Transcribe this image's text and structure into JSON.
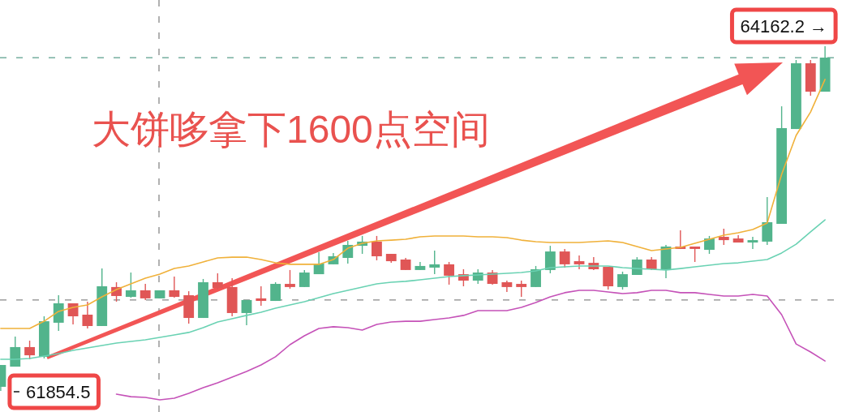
{
  "chart_data": {
    "type": "candlestick",
    "categories": [
      null,
      null,
      null,
      null,
      null,
      null,
      null,
      null,
      null,
      null,
      null,
      null,
      null,
      null,
      null,
      null,
      null,
      null,
      null,
      null,
      null,
      null,
      null,
      null,
      null,
      null,
      null,
      null,
      null,
      null,
      null,
      null,
      null,
      null,
      null,
      null,
      null,
      null,
      null,
      null,
      null,
      null,
      null,
      null,
      null,
      null,
      null,
      null,
      null,
      null,
      null,
      null,
      null,
      null,
      null,
      null,
      null,
      null
    ],
    "ohlc": [
      [
        61882,
        62028,
        61854.5,
        62028
      ],
      [
        62017,
        62218,
        62017,
        62148
      ],
      [
        62148,
        62191,
        62066,
        62093
      ],
      [
        62083,
        62354,
        62072,
        62321
      ],
      [
        62311,
        62495,
        62256,
        62441
      ],
      [
        62441,
        62441,
        62300,
        62354
      ],
      [
        62365,
        62452,
        62273,
        62289
      ],
      [
        62289,
        62674,
        62289,
        62555
      ],
      [
        62550,
        62582,
        62452,
        62490
      ],
      [
        62484,
        62647,
        62479,
        62528
      ],
      [
        62528,
        62571,
        62463,
        62474
      ],
      [
        62474,
        62528,
        62474,
        62528
      ],
      [
        62528,
        62620,
        62479,
        62484
      ],
      [
        62495,
        62522,
        62305,
        62343
      ],
      [
        62343,
        62604,
        62343,
        62582
      ],
      [
        62582,
        62642,
        62533,
        62544
      ],
      [
        62550,
        62609,
        62354,
        62376
      ],
      [
        62376,
        62463,
        62294,
        62463
      ],
      [
        62474,
        62555,
        62425,
        62457
      ],
      [
        62457,
        62582,
        62457,
        62571
      ],
      [
        62571,
        62664,
        62539,
        62550
      ],
      [
        62550,
        62664,
        62550,
        62647
      ],
      [
        62636,
        62783,
        62636,
        62707
      ],
      [
        62702,
        62778,
        62702,
        62756
      ],
      [
        62745,
        62859,
        62707,
        62832
      ],
      [
        62826,
        62892,
        62772,
        62854
      ],
      [
        62854,
        62892,
        62729,
        62756
      ],
      [
        62772,
        62772,
        62712,
        62723
      ],
      [
        62734,
        62745,
        62664,
        62664
      ],
      [
        62664,
        62718,
        62664,
        62691
      ],
      [
        62680,
        62794,
        62636,
        62702
      ],
      [
        62702,
        62718,
        62566,
        62626
      ],
      [
        62636,
        62669,
        62555,
        62593
      ],
      [
        62593,
        62669,
        62571,
        62647
      ],
      [
        62647,
        62664,
        62566,
        62571
      ],
      [
        62582,
        62593,
        62517,
        62550
      ],
      [
        62571,
        62593,
        62484,
        62550
      ],
      [
        62550,
        62691,
        62550,
        62669
      ],
      [
        62664,
        62826,
        62642,
        62788
      ],
      [
        62788,
        62805,
        62680,
        62702
      ],
      [
        62723,
        62761,
        62669,
        62702
      ],
      [
        62712,
        62750,
        62664,
        62669
      ],
      [
        62685,
        62685,
        62533,
        62555
      ],
      [
        62550,
        62653,
        62533,
        62636
      ],
      [
        62631,
        62750,
        62631,
        62734
      ],
      [
        62734,
        62750,
        62664,
        62669
      ],
      [
        62669,
        62832,
        62609,
        62821
      ],
      [
        62821,
        62930,
        62805,
        62805
      ],
      [
        62821,
        62821,
        62718,
        62805
      ],
      [
        62799,
        62892,
        62772,
        62875
      ],
      [
        62886,
        62940,
        62832,
        62864
      ],
      [
        62875,
        62897,
        62848,
        62848
      ],
      [
        62848,
        62886,
        62805,
        62864
      ],
      [
        62854,
        63152,
        62832,
        62984
      ],
      [
        62973,
        63760,
        62973,
        63614
      ],
      [
        63608,
        64070,
        63608,
        64048
      ],
      [
        64048,
        64070,
        63831,
        63858
      ],
      [
        63858,
        64162.2,
        63858,
        64086
      ]
    ],
    "colors": [
      "#52b48c",
      "#52b48c",
      "#e05656",
      "#52b48c",
      "#52b48c",
      "#e05656",
      "#e05656",
      "#52b48c",
      "#e05656",
      "#52b48c",
      "#e05656",
      "#52b48c",
      "#e05656",
      "#e05656",
      "#52b48c",
      "#e05656",
      "#e05656",
      "#52b48c",
      "#e05656",
      "#52b48c",
      "#e05656",
      "#52b48c",
      "#52b48c",
      "#52b48c",
      "#52b48c",
      "#52b48c",
      "#e05656",
      "#e05656",
      "#e05656",
      "#52b48c",
      "#52b48c",
      "#e05656",
      "#e05656",
      "#52b48c",
      "#e05656",
      "#e05656",
      "#e05656",
      "#52b48c",
      "#52b48c",
      "#e05656",
      "#e05656",
      "#e05656",
      "#e05656",
      "#52b48c",
      "#52b48c",
      "#e05656",
      "#52b48c",
      "#e05656",
      "#e05656",
      "#52b48c",
      "#e05656",
      "#e05656",
      "#52b48c",
      "#52b48c",
      "#52b48c",
      "#52b48c",
      "#e05656",
      "#52b48c"
    ],
    "series": [
      {
        "type": "line",
        "color": "#f0b13a",
        "values": [
          62273,
          62273,
          62273,
          62321,
          62387,
          62414,
          62430,
          62484,
          62533,
          62571,
          62609,
          62636,
          62674,
          62691,
          62718,
          62745,
          62750,
          62750,
          62734,
          62712,
          62702,
          62702,
          62702,
          62734,
          62810,
          62843,
          62859,
          62864,
          62870,
          62886,
          62892,
          62892,
          62892,
          62886,
          62886,
          62881,
          62864,
          62854,
          62848,
          62848,
          62848,
          62854,
          62859,
          62848,
          62821,
          62794,
          62805,
          62816,
          62843,
          62870,
          62897,
          62913,
          62935,
          62979,
          63304,
          63565,
          63722,
          63940
        ]
      },
      {
        "type": "line",
        "color": "#6ad2b3",
        "values": [
          62066,
          62066,
          62072,
          62088,
          62104,
          62126,
          62142,
          62159,
          62175,
          62186,
          62197,
          62213,
          62229,
          62246,
          62278,
          62316,
          62338,
          62360,
          62381,
          62408,
          62430,
          62452,
          62479,
          62506,
          62528,
          62550,
          62571,
          62582,
          62588,
          62598,
          62609,
          62620,
          62626,
          62631,
          62636,
          62642,
          62647,
          62658,
          62680,
          62685,
          62691,
          62691,
          62691,
          62680,
          62674,
          62669,
          62664,
          62674,
          62685,
          62696,
          62707,
          62712,
          62723,
          62734,
          62778,
          62837,
          62919,
          63000
        ]
      },
      {
        "type": "line",
        "color": "#c552b8",
        "values": [
          null,
          null,
          null,
          null,
          null,
          null,
          null,
          null,
          61833,
          61816,
          61811,
          61795,
          61806,
          61838,
          61876,
          61909,
          61947,
          61985,
          62028,
          62083,
          62164,
          62224,
          62273,
          62284,
          62278,
          62262,
          62300,
          62316,
          62321,
          62321,
          62332,
          62343,
          62360,
          62392,
          62392,
          62392,
          62414,
          62446,
          62484,
          62512,
          62528,
          62528,
          62517,
          62506,
          62512,
          62528,
          62528,
          62512,
          62512,
          62501,
          62490,
          62490,
          62501,
          62490,
          62365,
          62169,
          62115,
          62055
        ]
      }
    ],
    "ref_lines": [
      {
        "axis": "y",
        "value": 64086,
        "color": "#5a9e8c",
        "line_style": "dashed"
      },
      {
        "axis": "y",
        "value": 62463,
        "color": "#888888",
        "line_style": "dashed"
      }
    ],
    "annotations": [
      "大饼哆拿下1600点空间",
      "64162.2 →",
      "61854.5"
    ]
  }
}
